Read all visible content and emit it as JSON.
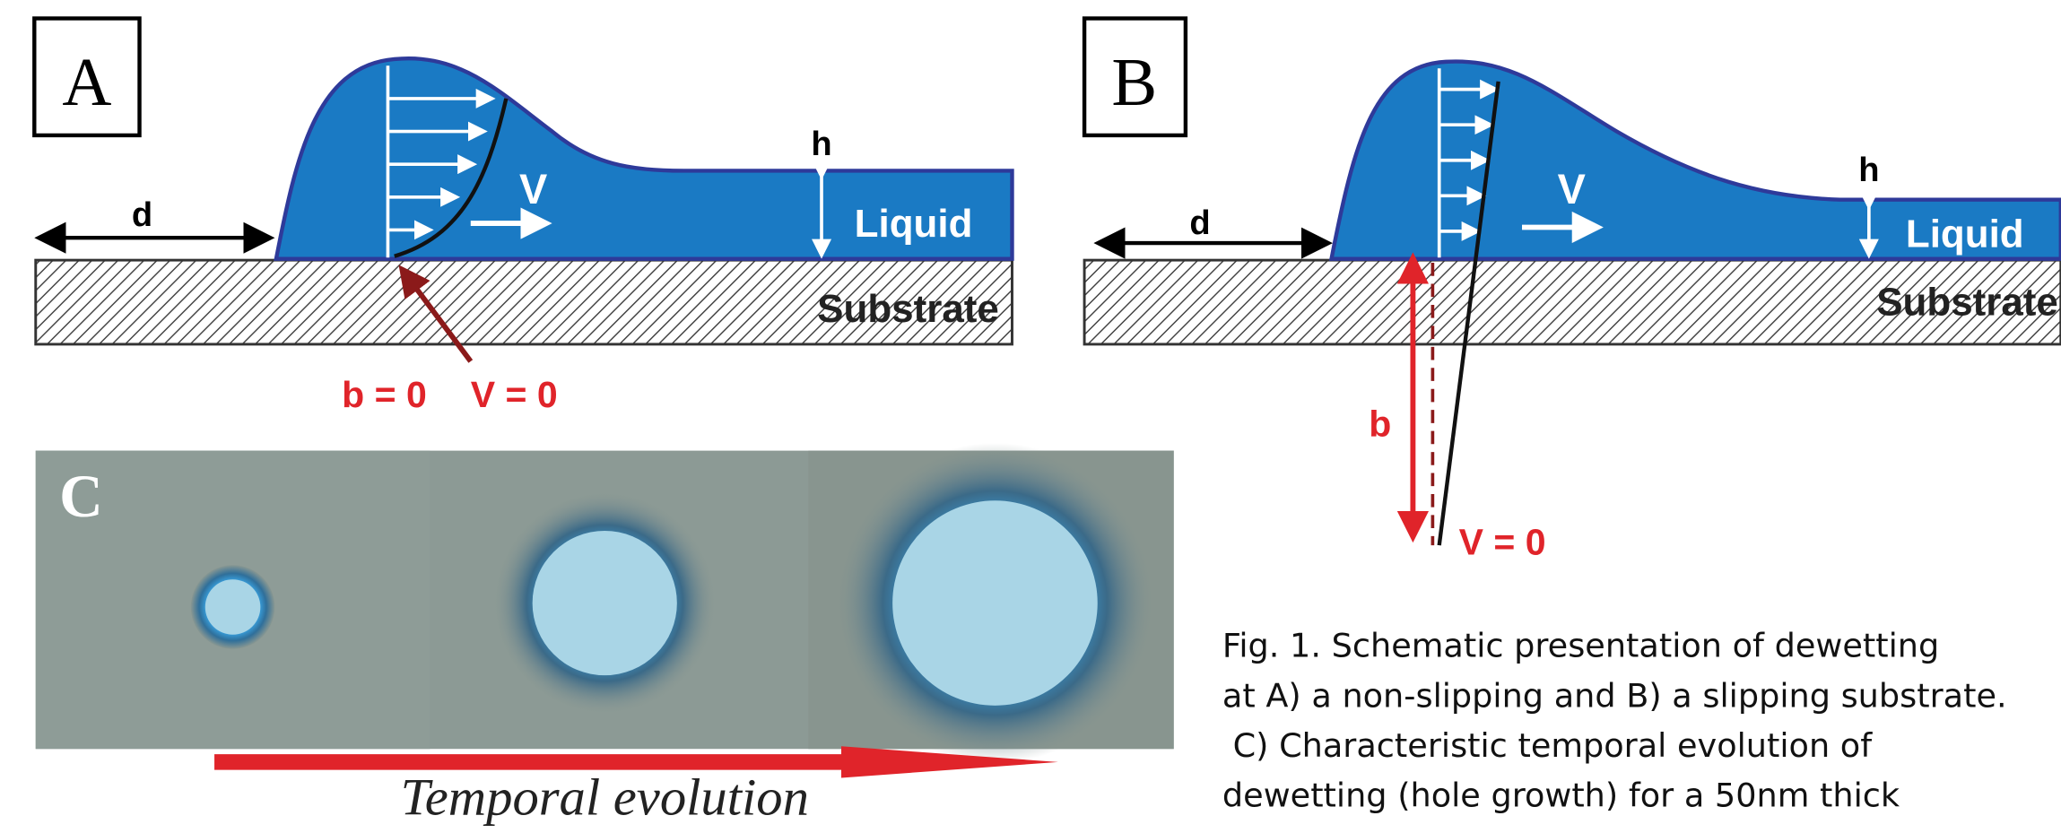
{
  "panel_a": {
    "label": "A",
    "d": "d",
    "h": "h",
    "v": "V",
    "liquid": "Liquid",
    "substrate": "Substrate",
    "annotation_b": "b = 0",
    "annotation_v": "V = 0"
  },
  "panel_b": {
    "label": "B",
    "d": "d",
    "h": "h",
    "v": "V",
    "liquid": "Liquid",
    "substrate": "Substrate",
    "b": "b",
    "annotation_v": "V = 0"
  },
  "panel_c": {
    "label": "C",
    "arrow_label": "Temporal evolution"
  },
  "caption": {
    "lines": [
      "Fig. 1. Schematic presentation of dewetting",
      "at A) a non-slipping and B) a slipping substrate.",
      " C) Characteristic temporal evolution of",
      "dewetting (hole growth) for a 50nm thick"
    ]
  }
}
